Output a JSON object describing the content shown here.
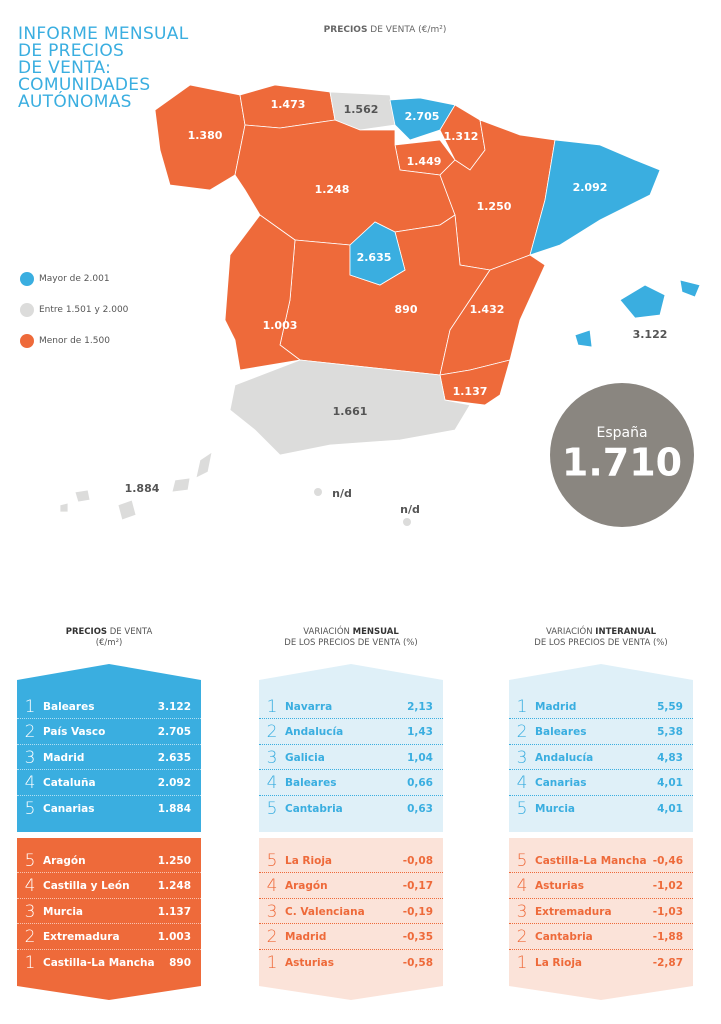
{
  "title_lines": [
    "INFORME MENSUAL",
    "DE PRECIOS",
    "DE VENTA:",
    "COMUNIDADES",
    "AUTÓNOMAS"
  ],
  "map_title": [
    {
      "text": "PRECIOS",
      "bold": true
    },
    {
      "text": " DE VENTA (€/m²)"
    }
  ],
  "legend": [
    "Mayor de 2.001",
    "Entre 1.501 y 2.000",
    "Menor de 1.500"
  ],
  "map_labels": [
    "1.380",
    "1.473",
    "1.562",
    "2.705",
    "1.312",
    "1.449",
    "1.248",
    "1.250",
    "2.092",
    "2.635",
    "890",
    "1.003",
    "1.432",
    "3.122",
    "1.137",
    "1.661",
    "1.884",
    "n/d",
    "n/d"
  ],
  "spain": {
    "label": "España",
    "value": "1.710"
  },
  "tables": [
    {
      "line1": [
        {
          "text": "PRECIOS",
          "bold": true
        },
        {
          "text": " DE VENTA"
        }
      ],
      "line2": "(€/m²)",
      "top": [
        [
          1,
          "Baleares",
          "3.122"
        ],
        [
          2,
          "País Vasco",
          "2.705"
        ],
        [
          3,
          "Madrid",
          "2.635"
        ],
        [
          4,
          "Cataluña",
          "2.092"
        ],
        [
          5,
          "Canarias",
          "1.884"
        ]
      ],
      "bottom": [
        [
          5,
          "Aragón",
          "1.250"
        ],
        [
          4,
          "Castilla y León",
          "1.248"
        ],
        [
          3,
          "Murcia",
          "1.137"
        ],
        [
          2,
          "Extremadura",
          "1.003"
        ],
        [
          1,
          "Castilla-La Mancha",
          "890"
        ]
      ]
    },
    {
      "line1": [
        {
          "text": "VARIACIÓN "
        },
        {
          "text": "MENSUAL",
          "bold": true
        }
      ],
      "line2": "DE LOS PRECIOS DE VENTA (%)",
      "top": [
        [
          1,
          "Navarra",
          "2,13"
        ],
        [
          2,
          "Andalucía",
          "1,43"
        ],
        [
          3,
          "Galicia",
          "1,04"
        ],
        [
          4,
          "Baleares",
          "0,66"
        ],
        [
          5,
          "Cantabria",
          "0,63"
        ]
      ],
      "bottom": [
        [
          5,
          "La Rioja",
          "-0,08"
        ],
        [
          4,
          "Aragón",
          "-0,17"
        ],
        [
          3,
          "C. Valenciana",
          "-0,19"
        ],
        [
          2,
          "Madrid",
          "-0,35"
        ],
        [
          1,
          "Asturias",
          "-0,58"
        ]
      ]
    },
    {
      "line1": [
        {
          "text": "VARIACIÓN "
        },
        {
          "text": "INTERANUAL",
          "bold": true
        }
      ],
      "line2": "DE LOS PRECIOS DE VENTA (%)",
      "top": [
        [
          1,
          "Madrid",
          "5,59"
        ],
        [
          2,
          "Baleares",
          "5,38"
        ],
        [
          3,
          "Andalucía",
          "4,83"
        ],
        [
          4,
          "Canarias",
          "4,01"
        ],
        [
          5,
          "Murcia",
          "4,01"
        ]
      ],
      "bottom": [
        [
          5,
          "Castilla-La Mancha",
          "-0,46"
        ],
        [
          4,
          "Asturias",
          "-1,02"
        ],
        [
          3,
          "Extremadura",
          "-1,03"
        ],
        [
          2,
          "Cantabria",
          "-1,88"
        ],
        [
          1,
          "La Rioja",
          "-2,87"
        ]
      ]
    }
  ]
}
